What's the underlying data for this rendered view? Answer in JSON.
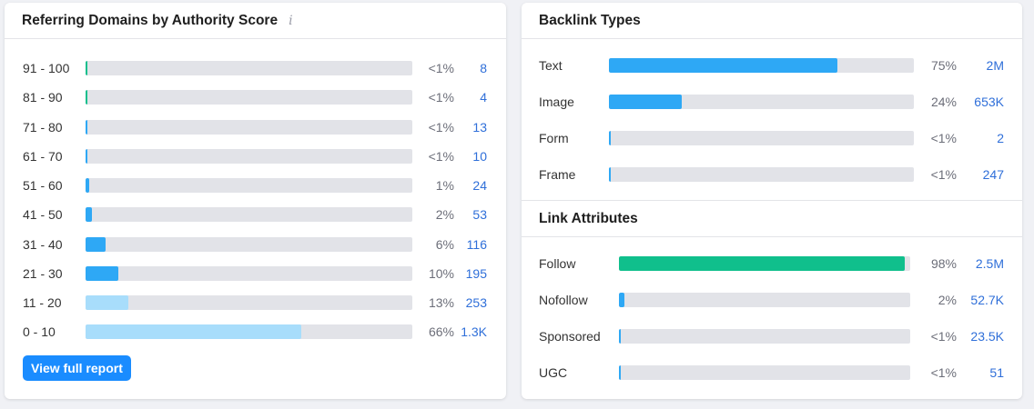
{
  "authority": {
    "title": "Referring Domains by Authority Score",
    "info_icon": "i",
    "rows": [
      {
        "range": "91 - 100",
        "fraction": 0.006,
        "percent": "<1%",
        "count": "8",
        "color": "#10bf8c"
      },
      {
        "range": "81 - 90",
        "fraction": 0.006,
        "percent": "<1%",
        "count": "4",
        "color": "#10bf8c"
      },
      {
        "range": "71 - 80",
        "fraction": 0.006,
        "percent": "<1%",
        "count": "13",
        "color": "#2ea8f5"
      },
      {
        "range": "61 - 70",
        "fraction": 0.006,
        "percent": "<1%",
        "count": "10",
        "color": "#2ea8f5"
      },
      {
        "range": "51 - 60",
        "fraction": 0.01,
        "percent": "1%",
        "count": "24",
        "color": "#2ea8f5"
      },
      {
        "range": "41 - 50",
        "fraction": 0.02,
        "percent": "2%",
        "count": "53",
        "color": "#2ea8f5"
      },
      {
        "range": "31 - 40",
        "fraction": 0.06,
        "percent": "6%",
        "count": "116",
        "color": "#2ea8f5"
      },
      {
        "range": "21 - 30",
        "fraction": 0.1,
        "percent": "10%",
        "count": "195",
        "color": "#2ea8f5"
      },
      {
        "range": "11 - 20",
        "fraction": 0.13,
        "percent": "13%",
        "count": "253",
        "color": "#a8ddfb"
      },
      {
        "range": "0 - 10",
        "fraction": 0.66,
        "percent": "66%",
        "count": "1.3K",
        "color": "#a8ddfb"
      }
    ],
    "button_label": "View full report"
  },
  "backlink_types": {
    "title": "Backlink Types",
    "rows": [
      {
        "label": "Text",
        "fraction": 0.75,
        "percent": "75%",
        "count": "2M",
        "color": "#2ea8f5"
      },
      {
        "label": "Image",
        "fraction": 0.24,
        "percent": "24%",
        "count": "653K",
        "color": "#2ea8f5"
      },
      {
        "label": "Form",
        "fraction": 0.005,
        "percent": "<1%",
        "count": "2",
        "color": "#2ea8f5"
      },
      {
        "label": "Frame",
        "fraction": 0.005,
        "percent": "<1%",
        "count": "247",
        "color": "#2ea8f5"
      }
    ]
  },
  "link_attributes": {
    "title": "Link Attributes",
    "rows": [
      {
        "label": "Follow",
        "fraction": 0.98,
        "percent": "98%",
        "count": "2.5M",
        "color": "#10bf8c"
      },
      {
        "label": "Nofollow",
        "fraction": 0.02,
        "percent": "2%",
        "count": "52.7K",
        "color": "#2ea8f5"
      },
      {
        "label": "Sponsored",
        "fraction": 0.005,
        "percent": "<1%",
        "count": "23.5K",
        "color": "#2ea8f5"
      },
      {
        "label": "UGC",
        "fraction": 0.005,
        "percent": "<1%",
        "count": "51",
        "color": "#2ea8f5"
      }
    ]
  }
}
